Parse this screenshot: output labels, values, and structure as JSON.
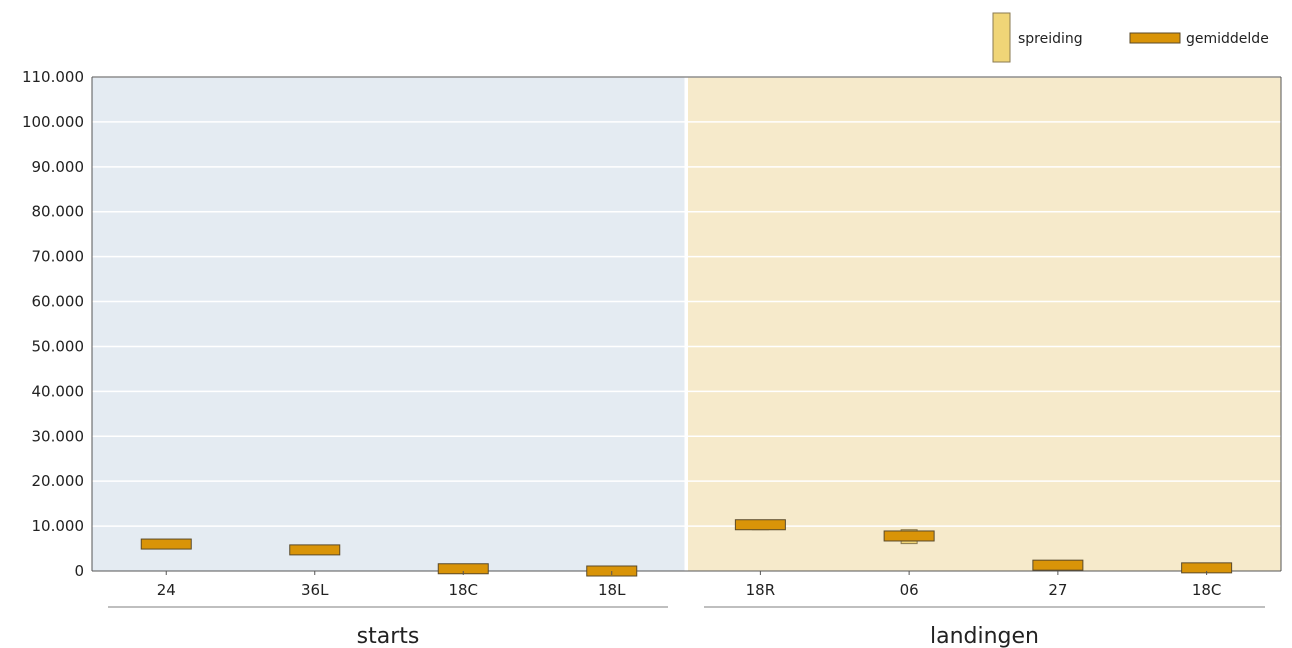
{
  "chart_data": {
    "type": "range-bar",
    "y_ticks": [
      "0",
      "10.000",
      "20.000",
      "30.000",
      "40.000",
      "50.000",
      "60.000",
      "70.000",
      "80.000",
      "90.000",
      "100.000",
      "110.000"
    ],
    "ylim": [
      0,
      110000
    ],
    "grid": true,
    "legend": {
      "position": "top-right",
      "items": [
        {
          "label": "spreiding",
          "color": "#f0d577"
        },
        {
          "label": "gemiddelde",
          "color": "#d99408"
        }
      ]
    },
    "groups": [
      {
        "label": "starts",
        "background": "#e4ebf2",
        "categories": [
          "24",
          "36L",
          "18C",
          "18L"
        ],
        "mean": [
          6000,
          4700,
          500,
          0
        ],
        "range_min": [
          5600,
          4200,
          200,
          -200
        ],
        "range_max": [
          6600,
          5400,
          900,
          300
        ]
      },
      {
        "label": "landingen",
        "background": "#f6eacb",
        "categories": [
          "18R",
          "06",
          "27",
          "18C"
        ],
        "mean": [
          10300,
          7800,
          1300,
          700
        ],
        "range_min": [
          9200,
          6100,
          900,
          300
        ],
        "range_max": [
          11300,
          9200,
          1700,
          1100
        ]
      }
    ]
  }
}
